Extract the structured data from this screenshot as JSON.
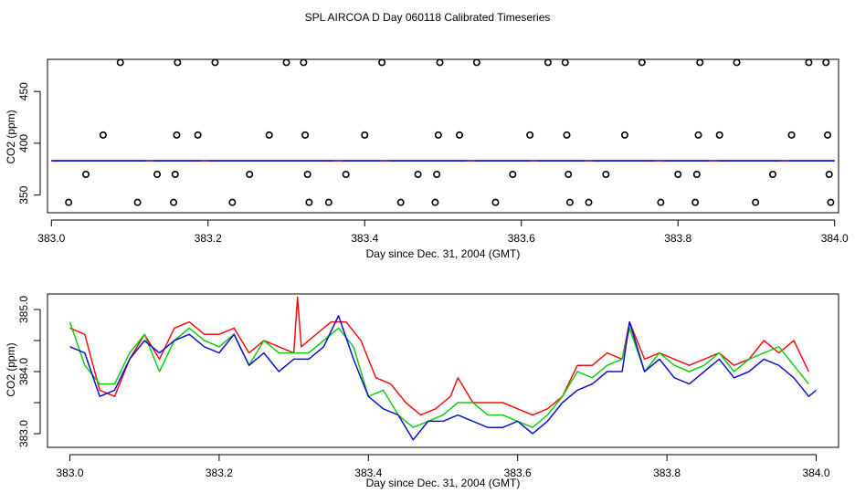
{
  "title": "SPL AIRCOA D  Day 060118  Calibrated Timeseries",
  "colors": {
    "red": "#ee1111",
    "green": "#11cc11",
    "blue": "#1111cc",
    "purple": "#9933aa",
    "axis": "#000000"
  },
  "chart_data": [
    {
      "type": "scatter",
      "name": "calibration-panel",
      "xlabel": "Day since Dec. 31, 2004 (GMT)",
      "ylabel": "CO2 (ppm)",
      "xlim": [
        382.995,
        384.005
      ],
      "ylim": [
        333,
        481
      ],
      "xticks": [
        383.0,
        383.2,
        383.4,
        383.6,
        383.8,
        384.0
      ],
      "xtick_labels": [
        "383.0",
        "383.2",
        "383.4",
        "383.6",
        "383.8",
        "384.0"
      ],
      "yticks": [
        350,
        400,
        450
      ],
      "ytick_labels": [
        "350",
        "400",
        "450"
      ],
      "points": {
        "x": [
          383.022,
          383.044,
          383.066,
          383.088,
          383.11,
          383.135,
          383.156,
          383.158,
          383.16,
          383.161,
          383.187,
          383.209,
          383.231,
          383.253,
          383.278,
          383.3,
          383.322,
          383.324,
          383.327,
          383.329,
          383.354,
          383.376,
          383.4,
          383.422,
          383.446,
          383.468,
          383.49,
          383.492,
          383.494,
          383.496,
          383.521,
          383.543,
          383.567,
          383.589,
          383.611,
          383.634,
          383.656,
          383.658,
          383.66,
          383.662,
          383.686,
          383.708,
          383.732,
          383.754,
          383.778,
          383.8,
          383.822,
          383.824,
          383.826,
          383.828,
          383.853,
          383.875,
          383.899,
          383.921,
          383.945,
          383.967,
          383.989,
          383.991,
          383.993,
          383.995
        ],
        "y": [
          343,
          370,
          408,
          478,
          343,
          370,
          343,
          370,
          408,
          478,
          408,
          478,
          343,
          370,
          408,
          478,
          478,
          408,
          370,
          343,
          343,
          370,
          408,
          478,
          343,
          370,
          343,
          370,
          408,
          478,
          408,
          478,
          343,
          370,
          408,
          478,
          478,
          408,
          370,
          343,
          343,
          370,
          408,
          478,
          343,
          370,
          343,
          370,
          408,
          478,
          408,
          478,
          343,
          370,
          408,
          478,
          478,
          408,
          370,
          343
        ]
      },
      "series": [
        {
          "name": "red",
          "x": [
            383.0,
            384.0
          ],
          "y": [
            383.3,
            383.3
          ]
        },
        {
          "name": "blue",
          "x": [
            383.0,
            384.0
          ],
          "y": [
            383.0,
            383.0
          ]
        }
      ]
    },
    {
      "type": "line",
      "name": "timeseries-panel",
      "xlabel": "Day since Dec. 31, 2004 (GMT)",
      "ylabel": "CO2 (ppm)",
      "xlim": [
        382.97,
        384.03
      ],
      "ylim": [
        382.78,
        385.25
      ],
      "xticks": [
        383.0,
        383.2,
        383.4,
        383.6,
        383.8,
        384.0
      ],
      "xtick_labels": [
        "383.0",
        "383.2",
        "383.4",
        "383.6",
        "383.8",
        "384.0"
      ],
      "yticks": [
        383.0,
        383.5,
        384.0,
        384.5,
        385.0
      ],
      "ytick_labels": [
        "383.0",
        "",
        "384.0",
        "",
        "385.0"
      ],
      "series": [
        {
          "name": "red",
          "x": [
            383.0,
            383.02,
            383.04,
            383.06,
            383.08,
            383.1,
            383.12,
            383.14,
            383.16,
            383.18,
            383.2,
            383.22,
            383.24,
            383.26,
            383.28,
            383.3,
            383.305,
            383.31,
            383.33,
            383.35,
            383.37,
            383.39,
            383.41,
            383.43,
            383.45,
            383.47,
            383.49,
            383.51,
            383.52,
            383.54,
            383.56,
            383.58,
            383.6,
            383.62,
            383.64,
            383.66,
            383.68,
            383.7,
            383.72,
            383.74,
            383.75,
            383.77,
            383.79,
            383.81,
            383.83,
            383.85,
            383.87,
            383.89,
            383.91,
            383.93,
            383.95,
            383.97,
            383.99
          ],
          "y": [
            384.7,
            384.6,
            383.7,
            383.6,
            384.2,
            384.6,
            384.2,
            384.7,
            384.8,
            384.6,
            384.6,
            384.7,
            384.3,
            384.5,
            384.4,
            384.3,
            385.2,
            384.4,
            384.6,
            384.8,
            384.8,
            384.5,
            383.9,
            383.8,
            383.5,
            383.3,
            383.4,
            383.6,
            383.9,
            383.5,
            383.5,
            383.5,
            383.4,
            383.3,
            383.4,
            383.6,
            384.1,
            384.1,
            384.3,
            384.2,
            384.8,
            384.2,
            384.3,
            384.2,
            384.1,
            384.2,
            384.3,
            384.1,
            384.2,
            384.5,
            384.3,
            384.5,
            384.0
          ]
        },
        {
          "name": "green",
          "x": [
            383.0,
            383.02,
            383.04,
            383.06,
            383.08,
            383.1,
            383.12,
            383.14,
            383.16,
            383.18,
            383.2,
            383.22,
            383.24,
            383.26,
            383.28,
            383.3,
            383.32,
            383.34,
            383.36,
            383.38,
            383.4,
            383.42,
            383.44,
            383.46,
            383.48,
            383.5,
            383.52,
            383.54,
            383.56,
            383.58,
            383.6,
            383.62,
            383.64,
            383.66,
            383.68,
            383.7,
            383.72,
            383.74,
            383.75,
            383.77,
            383.79,
            383.81,
            383.83,
            383.85,
            383.87,
            383.89,
            383.91,
            383.93,
            383.95,
            383.97,
            383.99
          ],
          "y": [
            384.8,
            384.1,
            383.8,
            383.8,
            384.3,
            384.6,
            384.0,
            384.5,
            384.7,
            384.5,
            384.4,
            384.6,
            384.1,
            384.5,
            384.3,
            384.3,
            384.3,
            384.5,
            384.7,
            384.4,
            383.6,
            383.7,
            383.3,
            383.1,
            383.2,
            383.3,
            383.5,
            383.5,
            383.3,
            383.3,
            383.2,
            383.1,
            383.3,
            383.6,
            384.0,
            383.9,
            384.1,
            384.2,
            384.7,
            384.0,
            384.3,
            384.1,
            384.0,
            384.1,
            384.3,
            384.0,
            384.2,
            384.3,
            384.4,
            384.1,
            383.8
          ]
        },
        {
          "name": "blue",
          "x": [
            383.0,
            383.02,
            383.04,
            383.06,
            383.08,
            383.1,
            383.12,
            383.14,
            383.16,
            383.18,
            383.2,
            383.22,
            383.24,
            383.26,
            383.28,
            383.3,
            383.32,
            383.34,
            383.36,
            383.38,
            383.4,
            383.42,
            383.44,
            383.46,
            383.48,
            383.5,
            383.52,
            383.54,
            383.56,
            383.58,
            383.6,
            383.62,
            383.64,
            383.66,
            383.68,
            383.7,
            383.72,
            383.74,
            383.75,
            383.77,
            383.79,
            383.81,
            383.83,
            383.85,
            383.87,
            383.89,
            383.91,
            383.93,
            383.95,
            383.97,
            383.99,
            384.0
          ],
          "y": [
            384.4,
            384.3,
            383.6,
            383.7,
            384.2,
            384.5,
            384.3,
            384.5,
            384.6,
            384.4,
            384.3,
            384.6,
            384.1,
            384.3,
            384.0,
            384.2,
            384.2,
            384.4,
            384.9,
            384.2,
            383.6,
            383.4,
            383.3,
            382.9,
            383.2,
            383.2,
            383.3,
            383.2,
            383.1,
            383.1,
            383.2,
            383.0,
            383.2,
            383.5,
            383.7,
            383.8,
            384.0,
            384.0,
            384.8,
            384.0,
            384.2,
            383.9,
            383.8,
            384.0,
            384.2,
            383.9,
            384.0,
            384.2,
            384.1,
            383.9,
            383.6,
            383.7
          ]
        }
      ]
    }
  ]
}
